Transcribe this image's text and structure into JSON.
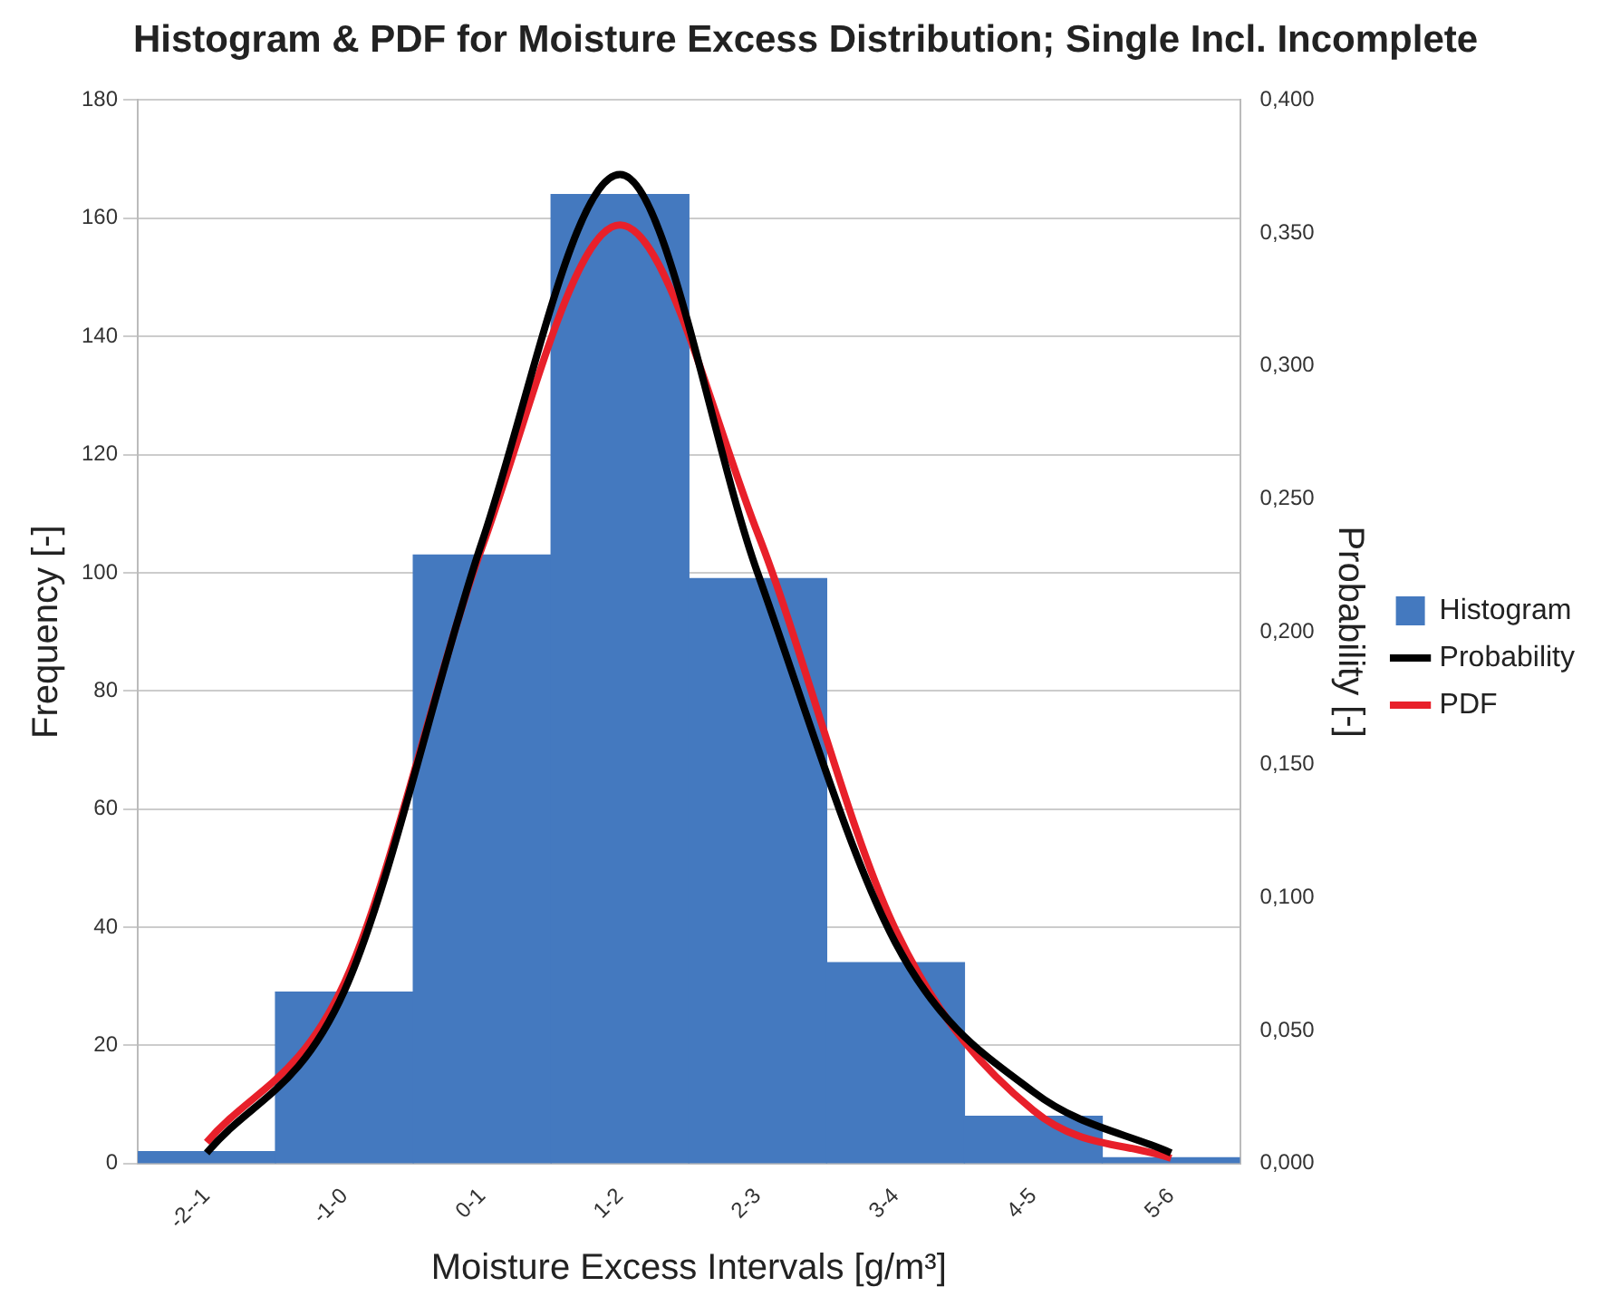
{
  "chart_data": {
    "type": "bar",
    "title": "Histogram & PDF for Moisture Excess Distribution; Single Incl. Incomplete",
    "xlabel": "Moisture Excess Intervals [g/m³]",
    "ylabel": "Frequency [-]",
    "y2label": "Probability [-]",
    "categories": [
      "-2--1",
      "-1-0",
      "0-1",
      "1-2",
      "2-3",
      "3-4",
      "4-5",
      "5-6"
    ],
    "series": [
      {
        "name": "Histogram",
        "color": "#4479bf",
        "values": [
          2,
          29,
          103,
          164,
          99,
          34,
          8,
          1
        ]
      },
      {
        "name": "Probability",
        "type": "line",
        "axis": "y2",
        "color": "#000000",
        "values": [
          0.004,
          0.065,
          0.234,
          0.372,
          0.222,
          0.083,
          0.027,
          0.004
        ]
      },
      {
        "name": "PDF",
        "type": "line",
        "axis": "y2",
        "color": "#e8202a",
        "values": [
          0.008,
          0.068,
          0.232,
          0.353,
          0.237,
          0.088,
          0.02,
          0.002
        ]
      }
    ],
    "ylim": [
      0,
      180
    ],
    "yticks": [
      0,
      20,
      40,
      60,
      80,
      100,
      120,
      140,
      160,
      180
    ],
    "y2lim": [
      0,
      0.4
    ],
    "y2ticks": [
      {
        "value": 0,
        "label": "0,000"
      },
      {
        "value": 0.05,
        "label": "0,050"
      },
      {
        "value": 0.1,
        "label": "0,100"
      },
      {
        "value": 0.15,
        "label": "0,150"
      },
      {
        "value": 0.2,
        "label": "0,200"
      },
      {
        "value": 0.25,
        "label": "0,250"
      },
      {
        "value": 0.3,
        "label": "0,300"
      },
      {
        "value": 0.35,
        "label": "0,350"
      },
      {
        "value": 0.4,
        "label": "0,400"
      }
    ],
    "grid": "y",
    "legend": "right",
    "marker": "none"
  }
}
